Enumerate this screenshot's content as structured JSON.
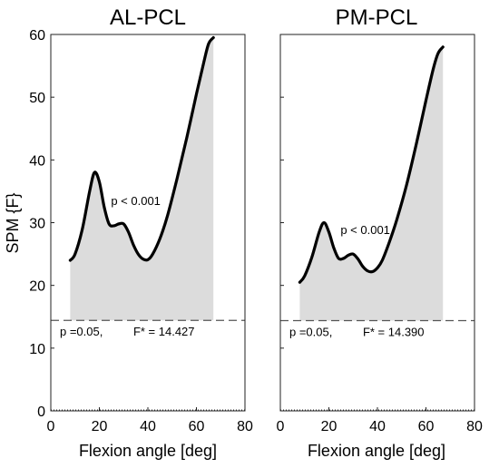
{
  "figure": {
    "ylabel": "SPM {F}",
    "colors": {
      "curve": "#000000",
      "fill": "#dcdcdc",
      "threshold": "#555555"
    }
  },
  "chart_data": [
    {
      "type": "line",
      "title": "AL-PCL",
      "xlabel": "Flexion angle [deg]",
      "ylabel": "SPM {F}",
      "xlim": [
        0,
        80
      ],
      "ylim": [
        0,
        60
      ],
      "xticks": [
        "0",
        "20",
        "40",
        "60",
        "80"
      ],
      "yticks": [
        "0",
        "10",
        "20",
        "30",
        "40",
        "50",
        "60"
      ],
      "grid": false,
      "series": [
        {
          "x": [
            8,
            10,
            13,
            16,
            18,
            20,
            22,
            24,
            26,
            28,
            30,
            32,
            34,
            36,
            38,
            40,
            42,
            45,
            48,
            52,
            56,
            60,
            63,
            65,
            67
          ],
          "values": [
            24,
            25,
            29,
            35,
            38,
            36.5,
            32.5,
            29.8,
            29.5,
            29.8,
            29.8,
            28.5,
            26.5,
            25,
            24.2,
            24.1,
            25,
            27.5,
            31,
            37,
            43.5,
            50.5,
            55.5,
            58.5,
            59.5
          ]
        }
      ],
      "threshold": {
        "value": 14.427,
        "label": "F* = 14.427",
        "alpha_label": "p =0.05,"
      },
      "annotation": "p < 0.001",
      "shaded_region": {
        "x_from": 8,
        "x_to": 67
      }
    },
    {
      "type": "line",
      "title": "PM-PCL",
      "xlabel": "Flexion angle [deg]",
      "ylabel": "",
      "xlim": [
        0,
        80
      ],
      "ylim": [
        0,
        60
      ],
      "xticks": [
        "0",
        "20",
        "40",
        "60",
        "80"
      ],
      "yticks": [],
      "grid": false,
      "series": [
        {
          "x": [
            8,
            10,
            13,
            16,
            18,
            20,
            22,
            24,
            26,
            28,
            30,
            32,
            34,
            36,
            38,
            40,
            42,
            45,
            48,
            52,
            56,
            60,
            63,
            65,
            67
          ],
          "values": [
            20.5,
            21.5,
            24.5,
            28.5,
            30,
            28.5,
            26,
            24.3,
            24.3,
            24.8,
            25,
            24.2,
            23,
            22.3,
            22.2,
            22.8,
            24,
            27,
            30.5,
            36,
            42.5,
            49.5,
            54.5,
            57,
            58
          ]
        }
      ],
      "threshold": {
        "value": 14.39,
        "label": "F* = 14.390",
        "alpha_label": "p =0.05,"
      },
      "annotation": "p < 0.001",
      "shaded_region": {
        "x_from": 8,
        "x_to": 67
      }
    }
  ]
}
